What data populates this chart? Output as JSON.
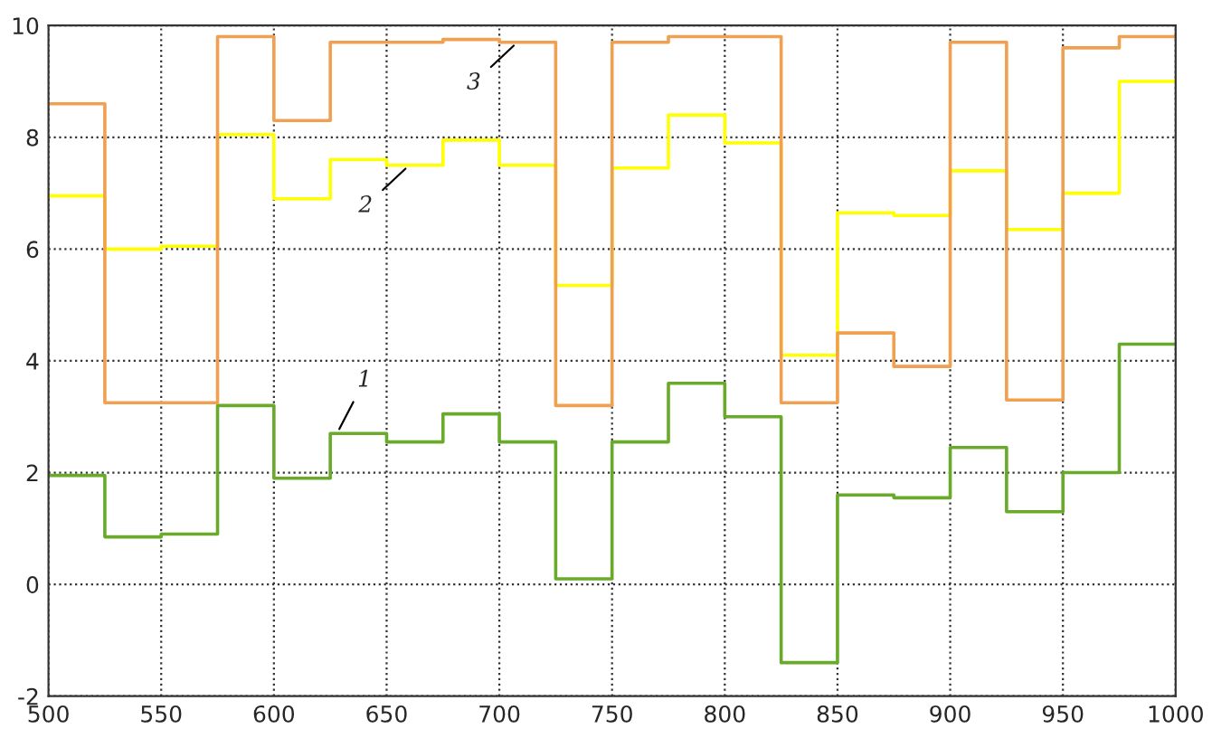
{
  "chart_data": {
    "type": "step",
    "x": [
      500,
      525,
      550,
      575,
      600,
      625,
      650,
      675,
      700,
      725,
      750,
      775,
      800,
      825,
      850,
      875,
      900,
      925,
      950,
      975,
      1000
    ],
    "series": [
      {
        "color": "#6aaa2a",
        "values": [
          1.95,
          0.85,
          0.9,
          3.2,
          1.9,
          2.7,
          2.55,
          3.05,
          2.55,
          0.1,
          2.55,
          3.6,
          3.0,
          -1.4,
          1.6,
          1.55,
          2.45,
          1.3,
          2.0,
          4.3,
          4.3
        ]
      },
      {
        "color": "#ffff00",
        "values": [
          6.95,
          6.0,
          6.05,
          8.05,
          6.9,
          7.6,
          7.5,
          7.95,
          7.5,
          5.35,
          7.45,
          8.4,
          7.9,
          4.1,
          6.65,
          6.6,
          7.4,
          6.35,
          7.0,
          9.0,
          9.0
        ]
      },
      {
        "color": "#f0a050",
        "values": [
          8.6,
          3.25,
          3.25,
          9.8,
          8.3,
          9.7,
          9.7,
          9.75,
          9.7,
          3.2,
          9.7,
          9.8,
          9.8,
          3.25,
          4.5,
          3.9,
          9.7,
          3.3,
          9.6,
          9.8,
          9.8
        ]
      }
    ],
    "xlim": [
      500,
      1000
    ],
    "ylim": [
      -2,
      10
    ],
    "xticks": [
      500,
      550,
      600,
      650,
      700,
      750,
      800,
      850,
      900,
      950,
      1000
    ],
    "yticks": [
      -2,
      0,
      2,
      4,
      6,
      8,
      10
    ],
    "grid": true,
    "line_style": "solid",
    "annotations": [
      {
        "text": "1",
        "x": 628,
        "y": 2.7
      },
      {
        "text": "2",
        "x": 660,
        "y": 7.5
      },
      {
        "text": "3",
        "x": 708,
        "y": 9.7
      }
    ]
  }
}
